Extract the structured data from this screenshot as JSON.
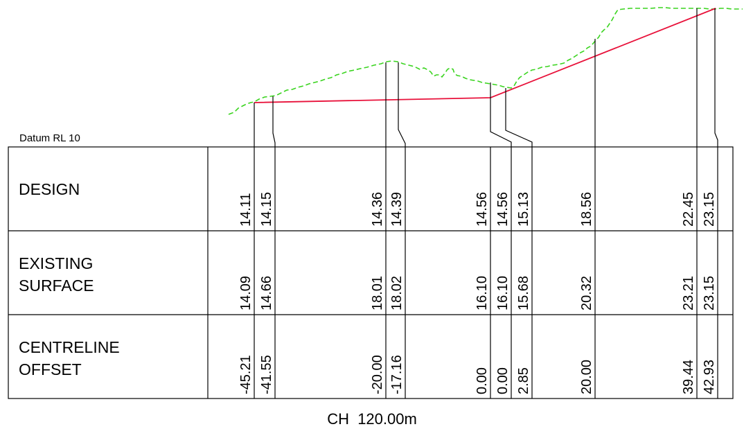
{
  "datum_label": "Datum RL 10",
  "chainage_label": "CH  120.00m",
  "colors": {
    "design_line": "#e8113a",
    "surface_line": "#3ad41f",
    "linework": "#000000"
  },
  "rows": [
    {
      "id": "design",
      "label_lines": [
        "DESIGN"
      ]
    },
    {
      "id": "existing",
      "label_lines": [
        "EXISTING",
        "SURFACE"
      ]
    },
    {
      "id": "offset",
      "label_lines": [
        "CENTRELINE",
        "OFFSET"
      ]
    }
  ],
  "stations": [
    {
      "design": "14.11",
      "existing": "14.09",
      "offset": "-45.21"
    },
    {
      "design": "14.15",
      "existing": "14.66",
      "offset": "-41.55"
    },
    {
      "design": "14.36",
      "existing": "18.01",
      "offset": "-20.00"
    },
    {
      "design": "14.39",
      "existing": "18.02",
      "offset": "-17.16"
    },
    {
      "design": "14.56",
      "existing": "16.10",
      "offset": "0.00"
    },
    {
      "design": "14.56",
      "existing": "16.10",
      "offset": "0.00"
    },
    {
      "design": "15.13",
      "existing": "15.68",
      "offset": "2.85"
    },
    {
      "design": "18.56",
      "existing": "20.32",
      "offset": "20.00"
    },
    {
      "design": "22.45",
      "existing": "23.21",
      "offset": "39.44"
    },
    {
      "design": "23.15",
      "existing": "23.15",
      "offset": "42.93"
    }
  ]
}
